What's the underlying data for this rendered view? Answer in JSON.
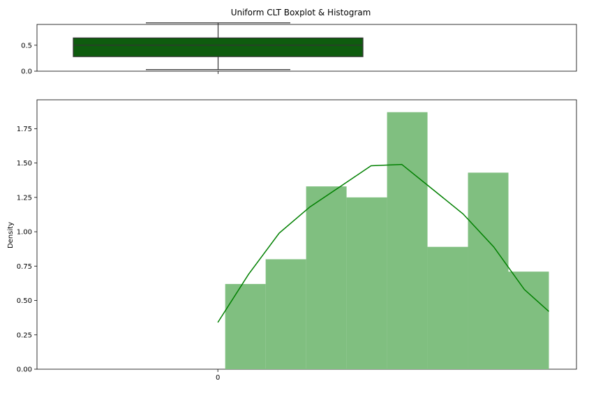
{
  "chart_data": [
    {
      "type": "boxplot",
      "title": "Uniform CLT Boxplot & Histogram",
      "x_tick_labels": [
        "0"
      ],
      "y_tick_labels": [
        "0.0",
        "0.5"
      ],
      "y_ticks": [
        0.0,
        0.5
      ],
      "ylim": [
        0.0,
        0.9
      ],
      "box": {
        "whisker_low": 0.03,
        "q1": 0.28,
        "median": 0.5,
        "q3": 0.64,
        "whisker_high": 0.93
      },
      "box_color": "#0e5c0e",
      "grid": false
    },
    {
      "type": "histogram",
      "ylabel": "Density",
      "x_tick_labels": [
        "0"
      ],
      "y_tick_labels": [
        "0.00",
        "0.25",
        "0.50",
        "0.75",
        "1.00",
        "1.25",
        "1.50",
        "1.75"
      ],
      "y_ticks": [
        0.0,
        0.25,
        0.5,
        0.75,
        1.0,
        1.25,
        1.5,
        1.75
      ],
      "ylim": [
        0.0,
        1.96
      ],
      "xlim": [
        -0.59,
        1.17
      ],
      "bin_edges": [
        0.024,
        0.156,
        0.288,
        0.42,
        0.552,
        0.684,
        0.816,
        0.948,
        1.08
      ],
      "densities": [
        0.62,
        0.8,
        1.33,
        1.25,
        1.87,
        0.89,
        1.43,
        0.71
      ],
      "kde": {
        "x": [
          0.0,
          0.1,
          0.2,
          0.3,
          0.4,
          0.5,
          0.6,
          0.7,
          0.8,
          0.9,
          1.0,
          1.08
        ],
        "y": [
          0.34,
          0.69,
          0.99,
          1.18,
          1.33,
          1.48,
          1.49,
          1.31,
          1.13,
          0.89,
          0.58,
          0.42
        ]
      },
      "bar_color": "#80bf80",
      "kde_color": "#008000",
      "grid": false
    }
  ]
}
